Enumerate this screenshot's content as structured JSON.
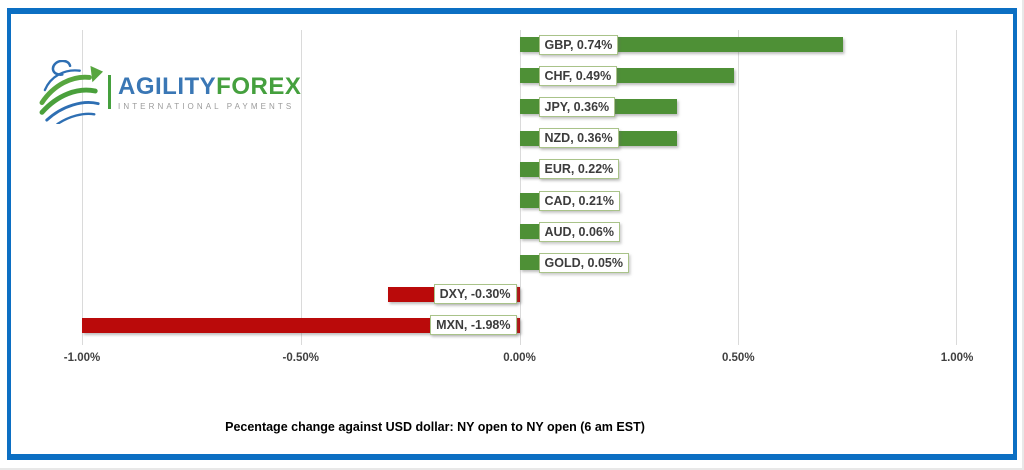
{
  "colors": {
    "frame_blue": "#0C6FC3",
    "brand_blue": "#3A77B5",
    "brand_green": "#45A03E",
    "tagline_gray": "#9B9B9B"
  },
  "logo": {
    "brand_primary": "AGILITY",
    "brand_secondary": "FOREX",
    "tagline": "INTERNATIONAL PAYMENTS",
    "icon": "globe-arrow-icon"
  },
  "chart_data": {
    "type": "bar",
    "orientation": "horizontal",
    "title": "Pecentage change against USD dollar: NY open to NY open  (6 am EST)",
    "categories": [
      "GBP",
      "CHF",
      "JPY",
      "NZD",
      "EUR",
      "CAD",
      "AUD",
      "GOLD",
      "DXY",
      "MXN"
    ],
    "values": [
      0.74,
      0.49,
      0.36,
      0.36,
      0.22,
      0.21,
      0.06,
      0.05,
      -0.3,
      -1.98
    ],
    "data_labels": [
      "GBP, 0.74%",
      "CHF, 0.49%",
      "JPY, 0.36%",
      "NZD, 0.36%",
      "EUR, 0.22%",
      "CAD, 0.21%",
      "AUD, 0.06%",
      "GOLD, 0.05%",
      "DXY, -0.30%",
      "MXN, -1.98%"
    ],
    "x_tick_labels": [
      "-1.00%",
      "-0.50%",
      "0.00%",
      "0.50%",
      "1.00%"
    ],
    "x_tick_values": [
      -1.0,
      -0.5,
      0.0,
      0.5,
      1.0
    ],
    "xlim": [
      -1.0,
      1.0
    ],
    "grid": true,
    "legend": "none",
    "positive_color": "#4E9036",
    "negative_color": "#BA0A0A",
    "gridline_color": "#DADADA",
    "label_border_color": "#A9C389",
    "label_text_color": "#3C3C3C",
    "tick_text_color": "#404040"
  }
}
